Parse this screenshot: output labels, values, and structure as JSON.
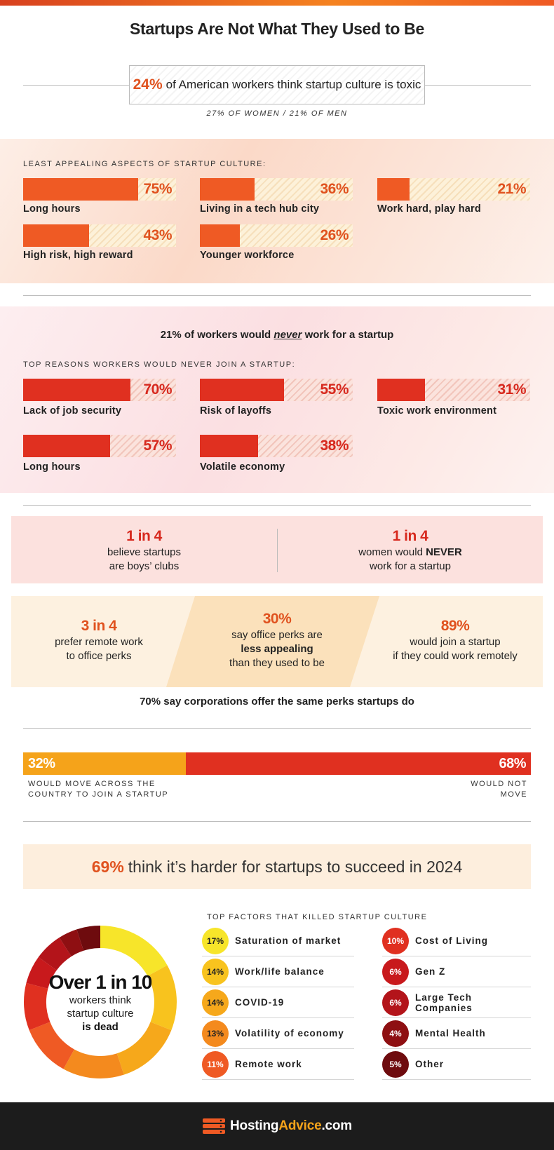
{
  "title": "Startups Are Not What They Used to Be",
  "toxic": {
    "pct": "24%",
    "text": "of American workers think startup culture is toxic",
    "sub": "27% OF WOMEN  /  21% OF MEN"
  },
  "least_appealing": {
    "label": "LEAST APPEALING ASPECTS OF STARTUP CULTURE:",
    "items": [
      {
        "label": "Long hours",
        "pct": "75%",
        "value": 75
      },
      {
        "label": "Living in a tech hub city",
        "pct": "36%",
        "value": 36
      },
      {
        "label": "Work hard, play hard",
        "pct": "21%",
        "value": 21
      },
      {
        "label": "High risk, high reward",
        "pct": "43%",
        "value": 43
      },
      {
        "label": "Younger workforce",
        "pct": "26%",
        "value": 26
      }
    ]
  },
  "never": {
    "pre": "21% of workers would ",
    "em": "never",
    "post": " work for a startup"
  },
  "reasons": {
    "label": "TOP REASONS WORKERS WOULD NEVER JOIN A STARTUP:",
    "items": [
      {
        "label": "Lack of job security",
        "pct": "70%",
        "value": 70
      },
      {
        "label": "Risk of layoffs",
        "pct": "55%",
        "value": 55
      },
      {
        "label": "Toxic work environment",
        "pct": "31%",
        "value": 31
      },
      {
        "label": "Long hours",
        "pct": "57%",
        "value": 57
      },
      {
        "label": "Volatile economy",
        "pct": "38%",
        "value": 38
      }
    ]
  },
  "boys_club": {
    "big": "1 in 4",
    "line1": "believe startups",
    "line2": "are boys’ clubs"
  },
  "women_never": {
    "big": "1 in 4",
    "line1a": "women would ",
    "line1b": "NEVER",
    "line2": "work for a startup"
  },
  "remote": {
    "big": "3 in 4",
    "line1": "prefer remote work",
    "line2": "to office perks"
  },
  "perks": {
    "big": "30%",
    "line1": "say office perks are",
    "line2": "less appealing",
    "line3": "than they used to be"
  },
  "join_remote": {
    "big": "89%",
    "line1": "would join a startup",
    "line2": "if they could work remotely"
  },
  "corporations": "70% say corporations offer the same perks startups do",
  "move": {
    "move_pct": "32%",
    "move_value": 32,
    "move_label1": "WOULD MOVE ACROSS THE",
    "move_label2": "COUNTRY TO JOIN A STARTUP",
    "stay_pct": "68%",
    "stay_value": 68,
    "stay_label1": "WOULD NOT",
    "stay_label2": "MOVE"
  },
  "harder": {
    "pct": "69%",
    "text": "think it’s harder for startups to succeed in 2024"
  },
  "dead": {
    "big": "Over 1 in 10",
    "line1": "workers think",
    "line2": "startup culture",
    "line3": "is dead"
  },
  "factors_label": "TOP FACTORS THAT KILLED STARTUP CULTURE",
  "chart_data": {
    "type": "pie",
    "categories": [
      "Saturation of market",
      "Work/life balance",
      "COVID-19",
      "Volatility of economy",
      "Remote work",
      "Cost of Living",
      "Gen Z",
      "Large Tech Companies",
      "Mental Health",
      "Other"
    ],
    "values": [
      17,
      14,
      14,
      13,
      11,
      10,
      6,
      6,
      4,
      5
    ],
    "labels": [
      "17%",
      "14%",
      "14%",
      "13%",
      "11%",
      "10%",
      "6%",
      "6%",
      "4%",
      "5%"
    ],
    "colors": [
      "#f7e52a",
      "#f8c31e",
      "#f6a81b",
      "#f48a1e",
      "#ef5a24",
      "#e03020",
      "#c8191c",
      "#b3141a",
      "#8e0f12",
      "#6e0b0e"
    ],
    "text_colors": [
      "#222222",
      "#222222",
      "#222222",
      "#222222",
      "#ffffff",
      "#ffffff",
      "#ffffff",
      "#ffffff",
      "#ffffff",
      "#ffffff"
    ]
  },
  "footer": {
    "brand1": "Hosting",
    "brand2": "Advice",
    "brand3": ".com"
  }
}
